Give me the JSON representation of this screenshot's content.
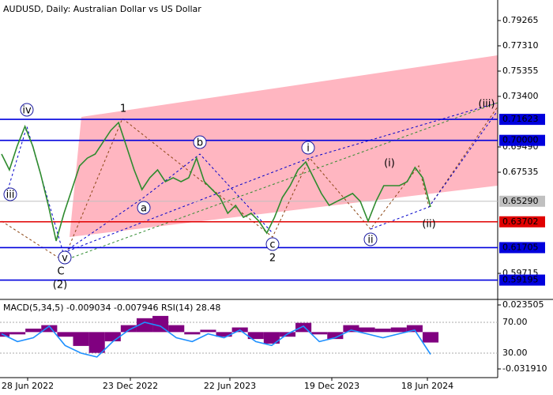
{
  "chart_data": {
    "type": "line",
    "title": "AUDUSD, Daily:  Australian Dollar vs US Dollar",
    "color": "#2e8b2e",
    "values": [
      0.6894,
      0.6772,
      0.6955,
      0.7108,
      0.6955,
      0.6741,
      0.6497,
      0.6222,
      0.6436,
      0.6619,
      0.6802,
      0.6863,
      0.6894,
      0.6985,
      0.7077,
      0.7138,
      0.6955,
      0.6772,
      0.6619,
      0.6711,
      0.6772,
      0.668,
      0.6711,
      0.668,
      0.6711,
      0.6863,
      0.668,
      0.6619,
      0.6558,
      0.6436,
      0.6497,
      0.6405,
      0.6436,
      0.6375,
      0.6283,
      0.6405,
      0.6558,
      0.665,
      0.6772,
      0.6833,
      0.6711,
      0.6589,
      0.6497,
      0.6528,
      0.6558,
      0.6589,
      0.6528,
      0.6375,
      0.6528,
      0.665,
      0.665,
      0.665,
      0.668,
      0.679,
      0.6711,
      0.6485
    ],
    "ylim": [
      0.57762,
      0.80853
    ],
    "yticks": [
      0.79265,
      {
        "value": 0.7731,
        "label": "0.77310"
      },
      0.75355,
      {
        "value": 0.734,
        "label": "0.73400"
      },
      {
        "value": 0.6949,
        "label": "0.69490"
      },
      0.67535,
      {
        "value": 0.59715,
        "label": "0.59715"
      }
    ],
    "levels": [
      {
        "value": 0.71623,
        "label": "0.71623",
        "color": "#0000dd"
      },
      {
        "value": 0.7,
        "label": "0.70000",
        "color": "#0000dd"
      },
      {
        "value": 0.6529,
        "label": "0.65290",
        "color": "#c0c0c0"
      },
      {
        "value": 0.63702,
        "label": "0.63702",
        "color": "#e00000"
      },
      {
        "value": 0.61705,
        "label": "0.61705",
        "color": "#0000dd"
      },
      {
        "value": 0.59195,
        "label": "0.59195",
        "color": "#0000dd"
      }
    ],
    "x_labels": [
      "28 Jun 2022",
      "23 Dec 2022",
      "22 Jun 2023",
      "19 Dec 2023",
      "18 Jun 2024"
    ],
    "annotations": [
      {
        "text": "iii",
        "color": "#1a1aa0",
        "circled": true
      },
      {
        "text": "iv",
        "color": "#1a1aa0",
        "circled": true
      },
      {
        "text": "v",
        "color": "#1a1aa0",
        "circled": true
      },
      {
        "text": "C",
        "color": "#a0302a",
        "circled": false
      },
      {
        "text": "(2)",
        "color": "#2e8b2e",
        "circled": false
      },
      {
        "text": "1",
        "color": "#8b4513",
        "circled": false
      },
      {
        "text": "a",
        "color": "#1a1aa0",
        "circled": true
      },
      {
        "text": "b",
        "color": "#1a1aa0",
        "circled": true
      },
      {
        "text": "c",
        "color": "#1a1aa0",
        "circled": true
      },
      {
        "text": "2",
        "color": "#8b4513",
        "circled": false
      },
      {
        "text": "i",
        "color": "#1a1aa0",
        "circled": true
      },
      {
        "text": "ii",
        "color": "#1a1aa0",
        "circled": true
      },
      {
        "text": "(i)",
        "color": "#e00000",
        "circled": false
      },
      {
        "text": "(ii)",
        "color": "#e00000",
        "circled": false
      },
      {
        "text": "(iii)",
        "color": "#e00000",
        "circled": false
      }
    ],
    "indicator": {
      "label": "MACD(5,34,5) -0.009034 -0.007946 RSI(14) 28.48",
      "macd_color": "#800080",
      "rsi_color": "#1e90ff",
      "macd_ylim": [
        -0.03191,
        0.023505
      ],
      "macd_ticks": [
        0.023505,
        {
          "value": -0.03191,
          "label": "-0.031910"
        }
      ],
      "rsi_ticks": [
        {
          "value": 70,
          "label": "70.00"
        },
        {
          "value": 30,
          "label": "30.00"
        }
      ],
      "macd": [
        -0.004,
        -0.002,
        0.003,
        0.006,
        -0.004,
        -0.012,
        -0.018,
        -0.008,
        0.006,
        0.012,
        0.014,
        0.006,
        -0.002,
        0.002,
        -0.004,
        0.004,
        -0.006,
        -0.01,
        -0.004,
        0.008,
        -0.002,
        -0.006,
        0.006,
        0.004,
        0.003,
        0.004,
        0.006,
        -0.009034
      ],
      "rsi": [
        55,
        45,
        50,
        65,
        40,
        30,
        25,
        45,
        60,
        70,
        65,
        50,
        45,
        55,
        50,
        60,
        45,
        40,
        55,
        65,
        45,
        50,
        60,
        55,
        50,
        55,
        60,
        28.48
      ]
    }
  }
}
